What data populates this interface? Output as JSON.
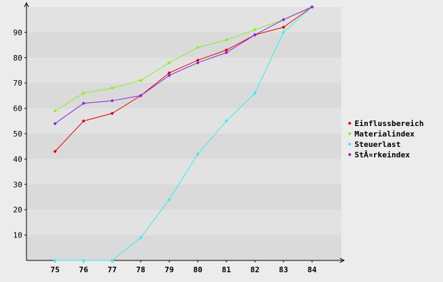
{
  "chart_data": {
    "type": "line",
    "title": "",
    "xlabel": "",
    "ylabel": "",
    "categories": [
      "75",
      "76",
      "77",
      "78",
      "79",
      "80",
      "81",
      "82",
      "83",
      "84"
    ],
    "ylim": [
      0,
      100
    ],
    "yticks": [
      10,
      20,
      30,
      40,
      50,
      60,
      70,
      80,
      90
    ],
    "grid": "horizontal bands",
    "legend_position": "right",
    "series": [
      {
        "name": "Einflussbereich",
        "color": "#dd0000",
        "values": [
          43,
          55,
          58,
          65,
          74,
          79,
          83,
          89,
          92,
          100
        ]
      },
      {
        "name": "Materialindex",
        "color": "#88ee22",
        "values": [
          59,
          66,
          68,
          71,
          78,
          84,
          87,
          91,
          95,
          100
        ]
      },
      {
        "name": "Steuerlast",
        "color": "#33eeee",
        "values": [
          0,
          0,
          0,
          9,
          24,
          42,
          55,
          66,
          90,
          100
        ]
      },
      {
        "name": "StÃ¤rkeindex",
        "color": "#8822dd",
        "values": [
          54,
          62,
          63,
          65,
          73,
          78,
          82,
          89,
          95,
          100
        ]
      }
    ]
  }
}
